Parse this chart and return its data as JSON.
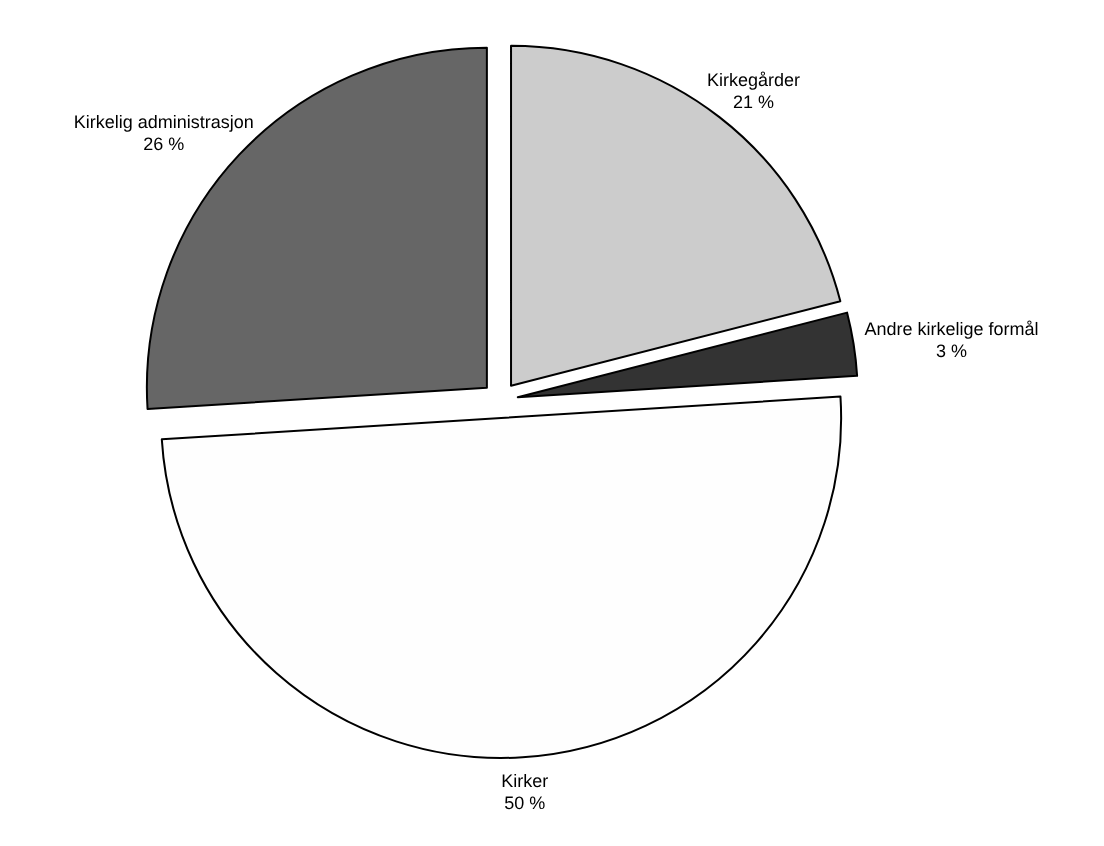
{
  "chart_data": {
    "type": "pie",
    "categories": [
      "Kirkegårder",
      "Andre kirkelige formål",
      "Kirker",
      "Kirkelig administrasjon"
    ],
    "values": [
      21,
      3,
      50,
      26
    ],
    "colors": [
      "#cccccc",
      "#333333",
      "#fefefe",
      "#666666"
    ],
    "value_labels": [
      "21 %",
      "3 %",
      "50 %",
      "26 %"
    ]
  }
}
